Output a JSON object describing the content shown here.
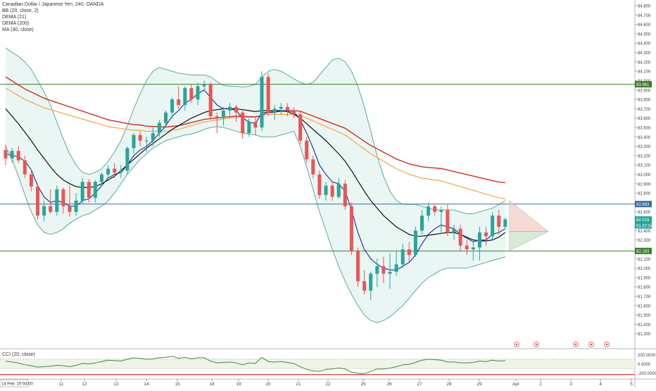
{
  "chart_data": {
    "type": "candlestick",
    "title": "Canadian Dollar / Japanese Yen, 240, OANDA",
    "indicators": [
      "BB (20, close, 2)",
      "DEMA (21)",
      "DEMA (200)",
      "MA (30, close)"
    ],
    "ylim": [
      81.2,
      84.8
    ],
    "y_ticks": [
      "84.800",
      "84.700",
      "84.600",
      "84.500",
      "84.400",
      "84.300",
      "84.200",
      "84.100",
      "84.000",
      "83.900",
      "83.800",
      "83.700",
      "83.600",
      "83.500",
      "83.400",
      "83.300",
      "83.200",
      "83.100",
      "83.000",
      "82.900",
      "82.800",
      "82.700",
      "82.600",
      "82.500",
      "82.400",
      "82.300",
      "82.200",
      "82.100",
      "82.000",
      "81.900",
      "81.800",
      "81.700",
      "81.600",
      "81.500",
      "81.400",
      "81.300"
    ],
    "x_ticks": [
      "11",
      "12",
      "13",
      "14",
      "15",
      "18",
      "19",
      "20",
      "21",
      "22",
      "25",
      "26",
      "27",
      "28",
      "29",
      "Apr",
      "2",
      "3",
      "4",
      "5"
    ],
    "price_labels": [
      {
        "text": "83.961",
        "value": 83.961,
        "color": "#3a7d2c"
      },
      {
        "text": "82.683",
        "value": 82.683,
        "color": "#3a6e9f"
      },
      {
        "text": "82.519",
        "value": 82.519,
        "color": "#26a69a"
      },
      {
        "text": "01:37:34",
        "value": 82.455,
        "color": "#26a69a"
      },
      {
        "text": "82.183",
        "value": 82.183,
        "color": "#3a7d2c"
      }
    ],
    "horizontal_lines": [
      83.961,
      82.683,
      82.183
    ],
    "candles": [
      {
        "o": 83.26,
        "h": 83.32,
        "l": 83.1,
        "c": 83.17
      },
      {
        "o": 83.17,
        "h": 83.28,
        "l": 83.12,
        "c": 83.25
      },
      {
        "o": 83.25,
        "h": 83.3,
        "l": 83.12,
        "c": 83.15
      },
      {
        "o": 83.15,
        "h": 83.2,
        "l": 82.96,
        "c": 83.0
      },
      {
        "o": 83.0,
        "h": 83.05,
        "l": 82.82,
        "c": 82.87
      },
      {
        "o": 82.87,
        "h": 82.9,
        "l": 82.52,
        "c": 82.56
      },
      {
        "o": 82.56,
        "h": 82.72,
        "l": 82.5,
        "c": 82.66
      },
      {
        "o": 82.66,
        "h": 82.84,
        "l": 82.58,
        "c": 82.6
      },
      {
        "o": 82.6,
        "h": 82.88,
        "l": 82.56,
        "c": 82.84
      },
      {
        "o": 82.84,
        "h": 82.86,
        "l": 82.58,
        "c": 82.66
      },
      {
        "o": 82.66,
        "h": 82.88,
        "l": 82.55,
        "c": 82.6
      },
      {
        "o": 82.6,
        "h": 82.8,
        "l": 82.56,
        "c": 82.72
      },
      {
        "o": 82.72,
        "h": 82.96,
        "l": 82.68,
        "c": 82.92
      },
      {
        "o": 82.92,
        "h": 82.95,
        "l": 82.7,
        "c": 82.75
      },
      {
        "o": 82.75,
        "h": 82.94,
        "l": 82.7,
        "c": 82.92
      },
      {
        "o": 82.92,
        "h": 83.02,
        "l": 82.88,
        "c": 83.0
      },
      {
        "o": 83.0,
        "h": 83.1,
        "l": 82.96,
        "c": 83.06
      },
      {
        "o": 83.06,
        "h": 83.12,
        "l": 82.96,
        "c": 83.02
      },
      {
        "o": 83.02,
        "h": 83.1,
        "l": 82.96,
        "c": 83.04
      },
      {
        "o": 83.04,
        "h": 83.3,
        "l": 83.0,
        "c": 83.28
      },
      {
        "o": 83.28,
        "h": 83.44,
        "l": 83.22,
        "c": 83.42
      },
      {
        "o": 83.42,
        "h": 83.46,
        "l": 83.3,
        "c": 83.36
      },
      {
        "o": 83.36,
        "h": 83.4,
        "l": 83.24,
        "c": 83.36
      },
      {
        "o": 83.36,
        "h": 83.5,
        "l": 83.3,
        "c": 83.44
      },
      {
        "o": 83.44,
        "h": 83.58,
        "l": 83.4,
        "c": 83.55
      },
      {
        "o": 83.55,
        "h": 83.68,
        "l": 83.5,
        "c": 83.66
      },
      {
        "o": 83.66,
        "h": 83.82,
        "l": 83.6,
        "c": 83.8
      },
      {
        "o": 83.8,
        "h": 83.94,
        "l": 83.7,
        "c": 83.74
      },
      {
        "o": 83.74,
        "h": 83.94,
        "l": 83.68,
        "c": 83.92
      },
      {
        "o": 83.92,
        "h": 83.96,
        "l": 83.76,
        "c": 83.8
      },
      {
        "o": 83.8,
        "h": 83.98,
        "l": 83.74,
        "c": 83.94
      },
      {
        "o": 83.94,
        "h": 84.0,
        "l": 83.9,
        "c": 83.96
      },
      {
        "o": 83.96,
        "h": 83.98,
        "l": 83.58,
        "c": 83.62
      },
      {
        "o": 83.62,
        "h": 83.66,
        "l": 83.44,
        "c": 83.6
      },
      {
        "o": 83.6,
        "h": 83.72,
        "l": 83.52,
        "c": 83.68
      },
      {
        "o": 83.68,
        "h": 83.76,
        "l": 83.6,
        "c": 83.72
      },
      {
        "o": 83.72,
        "h": 83.74,
        "l": 83.56,
        "c": 83.66
      },
      {
        "o": 83.66,
        "h": 83.7,
        "l": 83.38,
        "c": 83.44
      },
      {
        "o": 83.44,
        "h": 83.6,
        "l": 83.4,
        "c": 83.56
      },
      {
        "o": 83.56,
        "h": 83.62,
        "l": 83.42,
        "c": 83.5
      },
      {
        "o": 83.5,
        "h": 84.1,
        "l": 83.46,
        "c": 84.04
      },
      {
        "o": 84.04,
        "h": 84.08,
        "l": 83.62,
        "c": 83.66
      },
      {
        "o": 83.66,
        "h": 83.74,
        "l": 83.58,
        "c": 83.7
      },
      {
        "o": 83.7,
        "h": 83.76,
        "l": 83.64,
        "c": 83.72
      },
      {
        "o": 83.72,
        "h": 83.76,
        "l": 83.62,
        "c": 83.68
      },
      {
        "o": 83.68,
        "h": 83.72,
        "l": 83.6,
        "c": 83.64
      },
      {
        "o": 83.64,
        "h": 83.68,
        "l": 83.32,
        "c": 83.36
      },
      {
        "o": 83.36,
        "h": 83.4,
        "l": 83.12,
        "c": 83.16
      },
      {
        "o": 83.16,
        "h": 83.2,
        "l": 82.96,
        "c": 83.0
      },
      {
        "o": 83.0,
        "h": 83.04,
        "l": 82.74,
        "c": 82.78
      },
      {
        "o": 82.78,
        "h": 82.92,
        "l": 82.72,
        "c": 82.88
      },
      {
        "o": 82.88,
        "h": 82.92,
        "l": 82.72,
        "c": 82.76
      },
      {
        "o": 82.76,
        "h": 82.96,
        "l": 82.74,
        "c": 82.9
      },
      {
        "o": 82.9,
        "h": 82.94,
        "l": 82.62,
        "c": 82.66
      },
      {
        "o": 82.66,
        "h": 82.7,
        "l": 82.14,
        "c": 82.18
      },
      {
        "o": 82.18,
        "h": 82.22,
        "l": 81.8,
        "c": 81.86
      },
      {
        "o": 81.86,
        "h": 81.98,
        "l": 81.72,
        "c": 81.76
      },
      {
        "o": 81.76,
        "h": 81.96,
        "l": 81.66,
        "c": 81.94
      },
      {
        "o": 81.94,
        "h": 82.1,
        "l": 81.8,
        "c": 82.02
      },
      {
        "o": 82.02,
        "h": 82.12,
        "l": 81.84,
        "c": 81.94
      },
      {
        "o": 81.94,
        "h": 82.16,
        "l": 81.78,
        "c": 81.96
      },
      {
        "o": 81.96,
        "h": 82.18,
        "l": 81.92,
        "c": 82.04
      },
      {
        "o": 82.04,
        "h": 82.26,
        "l": 82.0,
        "c": 82.2
      },
      {
        "o": 82.2,
        "h": 82.28,
        "l": 82.06,
        "c": 82.14
      },
      {
        "o": 82.14,
        "h": 82.44,
        "l": 82.12,
        "c": 82.4
      },
      {
        "o": 82.4,
        "h": 82.62,
        "l": 82.36,
        "c": 82.56
      },
      {
        "o": 82.56,
        "h": 82.7,
        "l": 82.5,
        "c": 82.66
      },
      {
        "o": 82.66,
        "h": 82.68,
        "l": 82.56,
        "c": 82.6
      },
      {
        "o": 82.6,
        "h": 82.66,
        "l": 82.38,
        "c": 82.62
      },
      {
        "o": 82.62,
        "h": 82.68,
        "l": 82.34,
        "c": 82.38
      },
      {
        "o": 82.38,
        "h": 82.46,
        "l": 82.3,
        "c": 82.42
      },
      {
        "o": 82.42,
        "h": 82.46,
        "l": 82.18,
        "c": 82.24
      },
      {
        "o": 82.24,
        "h": 82.3,
        "l": 82.14,
        "c": 82.2
      },
      {
        "o": 82.2,
        "h": 82.28,
        "l": 82.08,
        "c": 82.22
      },
      {
        "o": 82.22,
        "h": 82.44,
        "l": 82.08,
        "c": 82.38
      },
      {
        "o": 82.38,
        "h": 82.44,
        "l": 82.24,
        "c": 82.34
      },
      {
        "o": 82.34,
        "h": 82.6,
        "l": 82.3,
        "c": 82.56
      },
      {
        "o": 82.56,
        "h": 82.62,
        "l": 82.36,
        "c": 82.44
      },
      {
        "o": 82.44,
        "h": 82.54,
        "l": 82.42,
        "c": 82.52
      }
    ],
    "dema21": [
      83.22,
      83.2,
      83.19,
      83.14,
      83.05,
      82.88,
      82.76,
      82.7,
      82.72,
      82.7,
      82.66,
      82.66,
      82.72,
      82.74,
      82.8,
      82.88,
      82.96,
      83.0,
      83.02,
      83.1,
      83.2,
      83.26,
      83.3,
      83.36,
      83.44,
      83.52,
      83.62,
      83.68,
      83.76,
      83.8,
      83.86,
      83.9,
      83.82,
      83.74,
      83.7,
      83.7,
      83.68,
      83.6,
      83.56,
      83.54,
      83.66,
      83.66,
      83.66,
      83.68,
      83.68,
      83.67,
      83.58,
      83.44,
      83.28,
      83.1,
      83.0,
      82.92,
      82.9,
      82.82,
      82.62,
      82.38,
      82.2,
      82.1,
      82.04,
      82.0,
      81.98,
      81.98,
      82.02,
      82.06,
      82.14,
      82.26,
      82.36,
      82.42,
      82.46,
      82.44,
      82.42,
      82.36,
      82.32,
      82.28,
      82.3,
      82.3,
      82.36,
      82.38,
      82.42
    ],
    "ma30": [
      83.7,
      83.62,
      83.54,
      83.45,
      83.36,
      83.26,
      83.17,
      83.08,
      83.0,
      82.94,
      82.9,
      82.87,
      82.86,
      82.86,
      82.87,
      82.9,
      82.94,
      82.98,
      83.04,
      83.1,
      83.16,
      83.22,
      83.28,
      83.33,
      83.38,
      83.43,
      83.48,
      83.52,
      83.56,
      83.6,
      83.63,
      83.66,
      83.68,
      83.69,
      83.7,
      83.7,
      83.7,
      83.69,
      83.68,
      83.67,
      83.68,
      83.68,
      83.68,
      83.68,
      83.67,
      83.64,
      83.6,
      83.54,
      83.48,
      83.42,
      83.36,
      83.29,
      83.22,
      83.14,
      83.04,
      82.93,
      82.82,
      82.72,
      82.64,
      82.56,
      82.5,
      82.44,
      82.4,
      82.36,
      82.34,
      82.34,
      82.35,
      82.36,
      82.37,
      82.38,
      82.38,
      82.36,
      82.33,
      82.3,
      82.29,
      82.29,
      82.3,
      82.33,
      82.38
    ],
    "dema200": [
      83.92,
      83.88,
      83.84,
      83.8,
      83.77,
      83.74,
      83.71,
      83.69,
      83.67,
      83.65,
      83.63,
      83.61,
      83.59,
      83.57,
      83.55,
      83.53,
      83.51,
      83.5,
      83.49,
      83.48,
      83.47,
      83.47,
      83.46,
      83.46,
      83.46,
      83.46,
      83.47,
      83.48,
      83.5,
      83.52,
      83.54,
      83.56,
      83.57,
      83.58,
      83.59,
      83.6,
      83.61,
      83.61,
      83.61,
      83.61,
      83.63,
      83.64,
      83.64,
      83.64,
      83.64,
      83.64,
      83.63,
      83.6,
      83.57,
      83.54,
      83.51,
      83.48,
      83.45,
      83.42,
      83.37,
      83.32,
      83.27,
      83.22,
      83.18,
      83.14,
      83.1,
      83.06,
      83.03,
      83.0,
      82.98,
      82.96,
      82.95,
      82.94,
      82.93,
      82.91,
      82.89,
      82.87,
      82.85,
      82.83,
      82.81,
      82.79,
      82.77,
      82.75,
      82.74
    ],
    "bb_upper": [
      84.35,
      84.3,
      84.26,
      84.2,
      84.12,
      84.0,
      83.88,
      83.74,
      83.56,
      83.38,
      83.22,
      83.1,
      83.02,
      83.0,
      83.02,
      83.06,
      83.14,
      83.24,
      83.36,
      83.52,
      83.7,
      83.86,
      84.0,
      84.1,
      84.14,
      84.12,
      84.1,
      84.08,
      84.07,
      84.06,
      84.06,
      84.06,
      84.04,
      83.99,
      83.95,
      83.94,
      83.94,
      83.93,
      83.94,
      83.96,
      84.04,
      84.1,
      84.12,
      84.1,
      84.06,
      84.02,
      83.98,
      83.96,
      83.98,
      84.06,
      84.14,
      84.22,
      84.24,
      84.2,
      84.1,
      83.94,
      83.72,
      83.46,
      83.2,
      82.98,
      82.82,
      82.72,
      82.68,
      82.68,
      82.68,
      82.66,
      82.64,
      82.62,
      82.62,
      82.62,
      82.62,
      82.6,
      82.58,
      82.58,
      82.6,
      82.62,
      82.64,
      82.68,
      82.72
    ],
    "bb_lower": [
      83.3,
      83.16,
      82.98,
      82.78,
      82.6,
      82.46,
      82.38,
      82.36,
      82.38,
      82.42,
      82.48,
      82.52,
      82.56,
      82.58,
      82.62,
      82.66,
      82.72,
      82.8,
      82.9,
      83.0,
      83.08,
      83.16,
      83.22,
      83.28,
      83.32,
      83.36,
      83.38,
      83.4,
      83.42,
      83.43,
      83.45,
      83.48,
      83.5,
      83.51,
      83.5,
      83.48,
      83.46,
      83.44,
      83.43,
      83.42,
      83.4,
      83.4,
      83.4,
      83.42,
      83.44,
      83.46,
      83.3,
      83.08,
      82.84,
      82.6,
      82.4,
      82.2,
      82.02,
      81.86,
      81.72,
      81.6,
      81.5,
      81.44,
      81.42,
      81.44,
      81.48,
      81.54,
      81.6,
      81.68,
      81.76,
      81.84,
      81.9,
      81.94,
      81.98,
      82.0,
      82.0,
      82.0,
      82.0,
      82.02,
      82.04,
      82.06,
      82.08,
      82.1,
      82.12
    ],
    "cci_title": "CCI (20, close)",
    "cci_ticks": [
      "200.0000",
      "0.0000",
      "-200.0000"
    ],
    "cci_ylim": [
      -250,
      250
    ],
    "cci": [
      60,
      40,
      20,
      -20,
      -40,
      -70,
      -60,
      -50,
      -30,
      -40,
      -60,
      -30,
      10,
      0,
      20,
      50,
      80,
      70,
      60,
      100,
      130,
      120,
      100,
      110,
      130,
      140,
      160,
      120,
      140,
      110,
      130,
      130,
      60,
      20,
      30,
      40,
      20,
      -20,
      20,
      10,
      140,
      50,
      40,
      50,
      30,
      10,
      -60,
      -120,
      -150,
      -160,
      -120,
      -110,
      -90,
      -110,
      -180,
      -200,
      -210,
      -160,
      -110,
      -110,
      -90,
      -60,
      -20,
      -10,
      30,
      80,
      100,
      90,
      80,
      40,
      40,
      20,
      20,
      30,
      60,
      50,
      80,
      60,
      70
    ],
    "time_tooltip": "14 Feb '19",
    "time_tooltip_right": "04:00",
    "event_markers": [
      "event-flag",
      "event-flag",
      "event-flag",
      "event-flag",
      "event-flag"
    ],
    "colors": {
      "up": "#26a69a",
      "down": "#ef5350",
      "bb": "#5fa8a0",
      "bb_fill": "#e5f4f1",
      "dema21": "#1c2a96",
      "ma30": "#111111",
      "dema200": "#d9281e",
      "orange": "#f4a63d",
      "cci": "#3c8a3a",
      "cci_fill": "#eef5e6",
      "cci_bound": "#d9281e"
    }
  }
}
